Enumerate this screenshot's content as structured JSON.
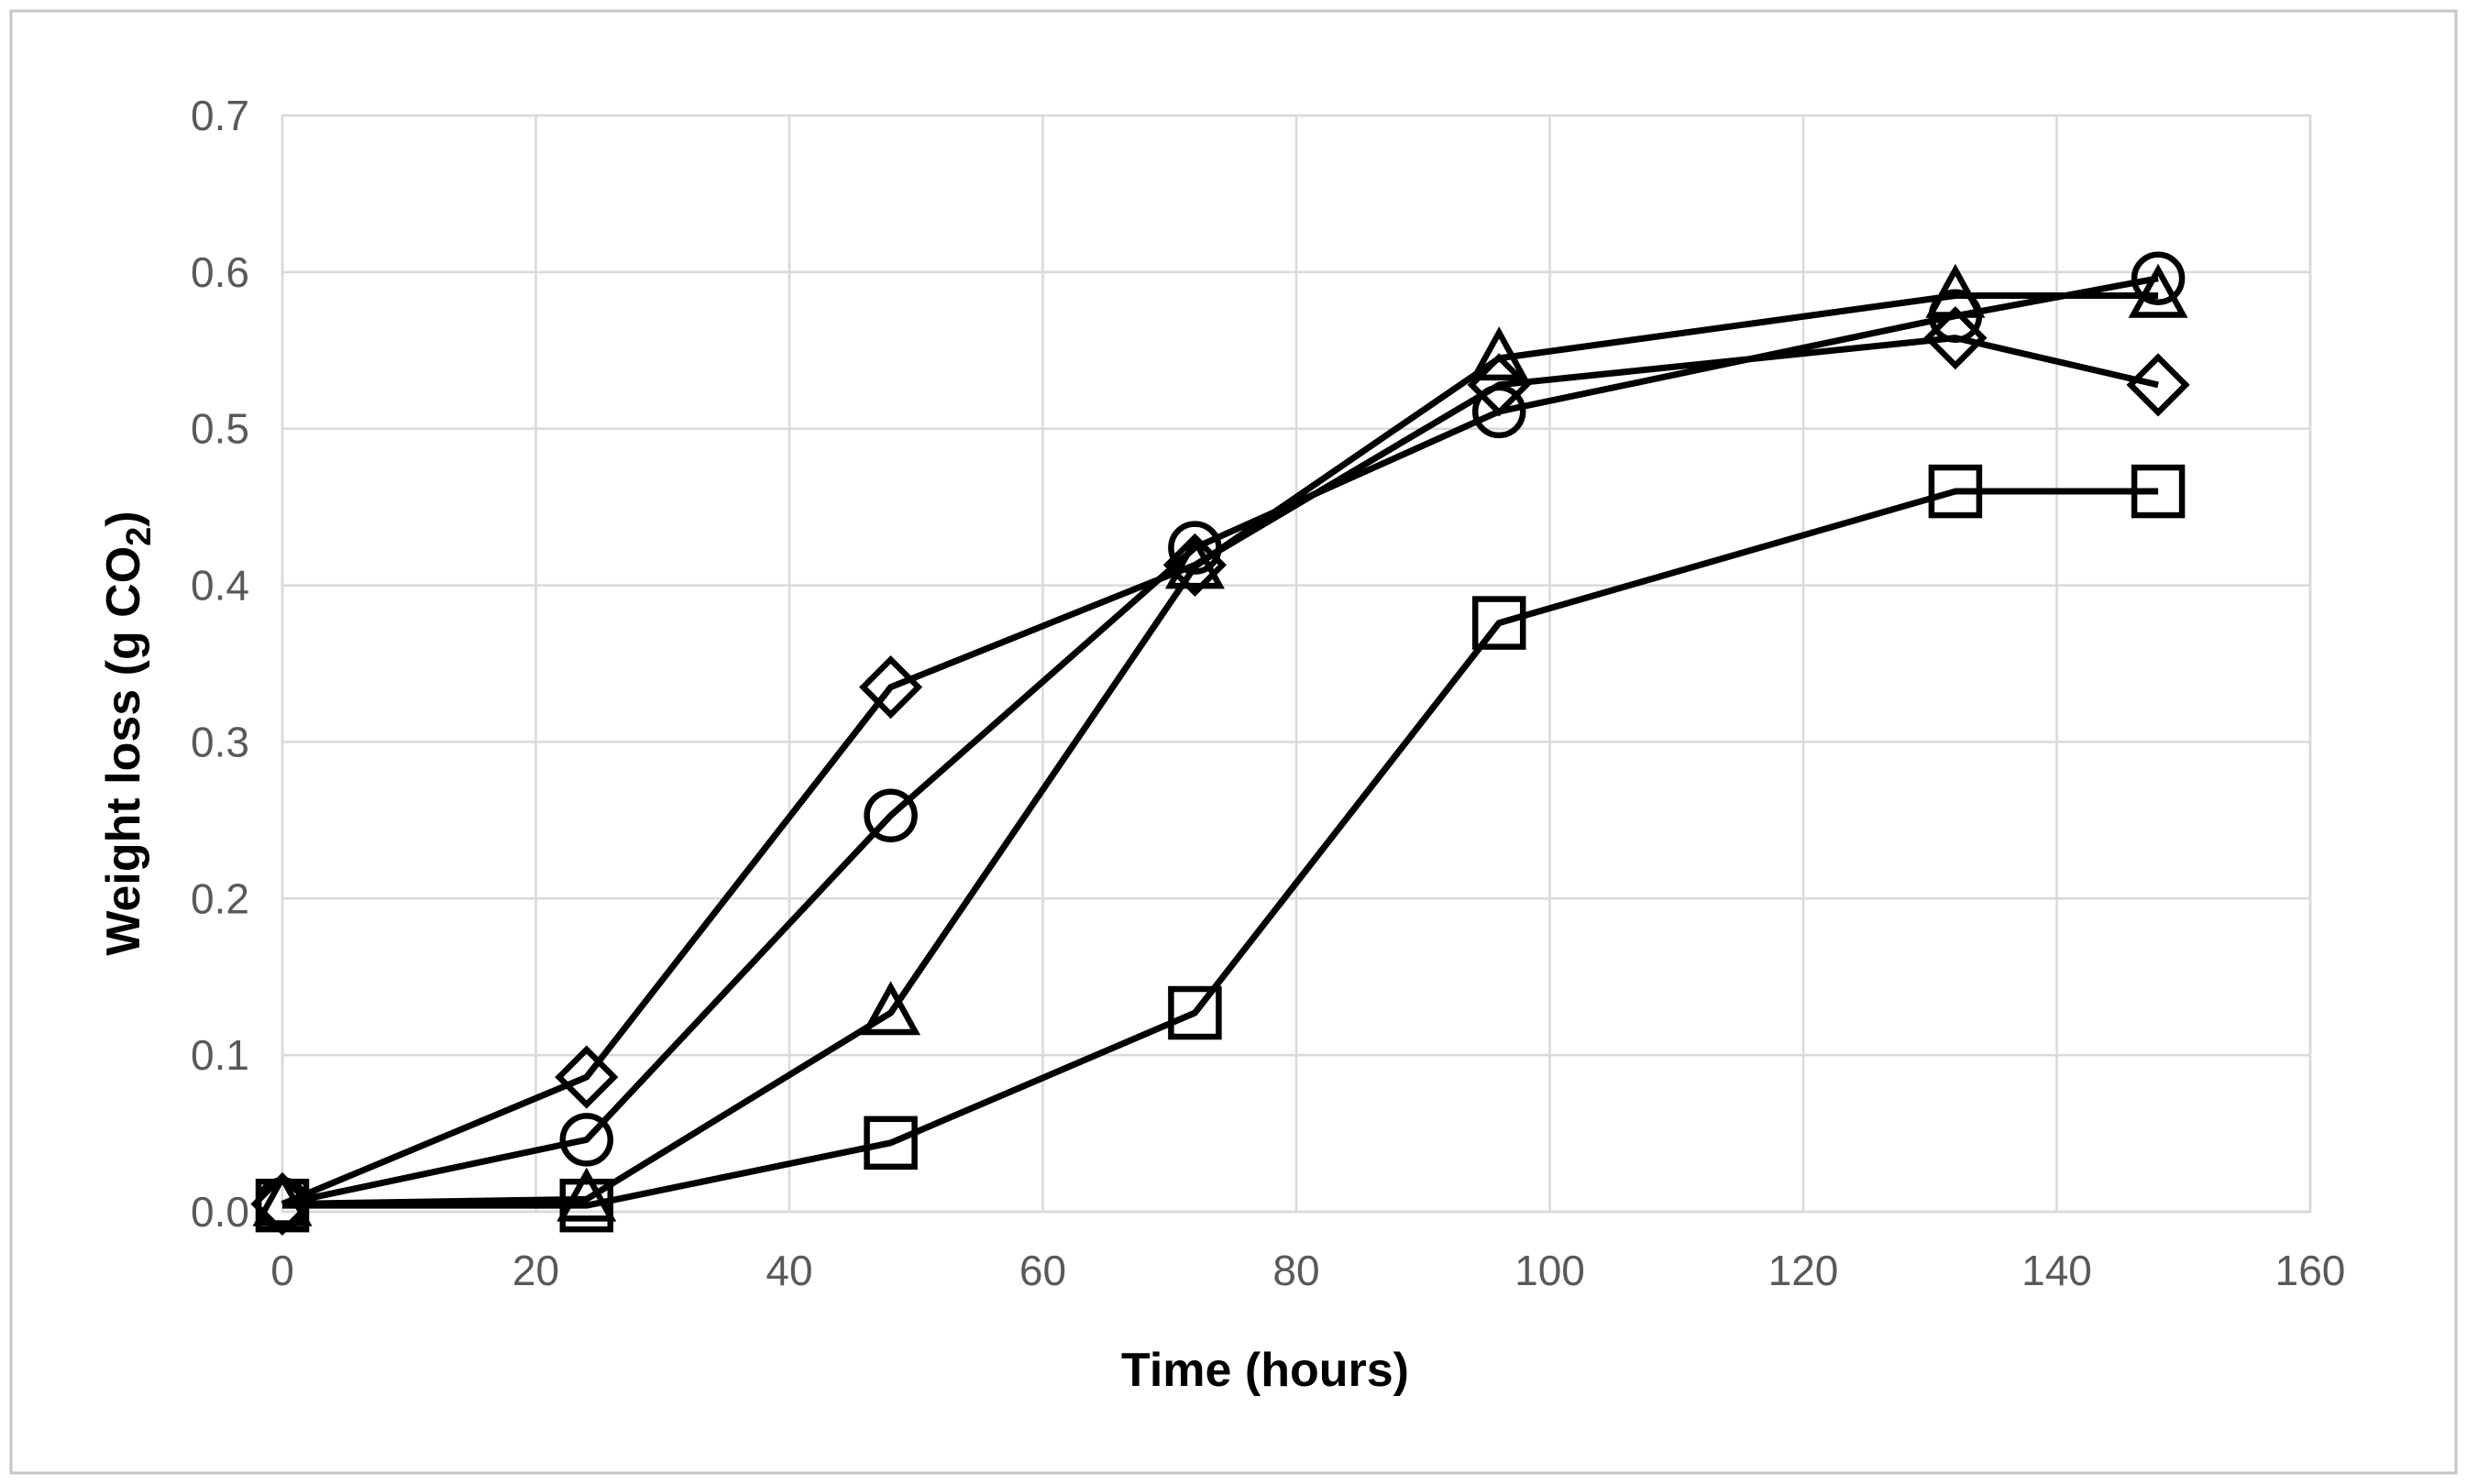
{
  "chart_data": {
    "type": "line",
    "title": "",
    "xlabel": "Time (hours)",
    "ylabel": {
      "pre": "Weight loss (g CO",
      "sub": "2",
      "post": ")"
    },
    "x": [
      0,
      24,
      48,
      72,
      96,
      132,
      148
    ],
    "series": [
      {
        "name": "diamond-series",
        "marker": "diamond",
        "values": [
          0.005,
          0.086,
          0.335,
          0.413,
          0.528,
          0.558,
          0.528
        ]
      },
      {
        "name": "circle-series",
        "marker": "circle",
        "values": [
          0.005,
          0.046,
          0.253,
          0.424,
          0.511,
          0.572,
          0.596
        ]
      },
      {
        "name": "triangle-series",
        "marker": "triangle",
        "values": [
          0.005,
          0.008,
          0.127,
          0.412,
          0.545,
          0.585,
          0.585
        ]
      },
      {
        "name": "square-series",
        "marker": "square",
        "values": [
          0.004,
          0.004,
          0.044,
          0.127,
          0.376,
          0.46,
          0.46
        ]
      }
    ],
    "xlim": [
      0,
      160
    ],
    "ylim": [
      0,
      0.7
    ],
    "x_tick_labels": [
      "0",
      "20",
      "40",
      "60",
      "80",
      "100",
      "120",
      "140",
      "160"
    ],
    "y_tick_labels": [
      "0.0",
      "0.1",
      "0.2",
      "0.3",
      "0.4",
      "0.5",
      "0.6",
      "0.7"
    ],
    "grid": true,
    "legend": "none",
    "line_color": "#000000",
    "grid_color": "#d9d9d9",
    "tick_label_color": "#595959",
    "axis_title_color": "#000000",
    "marker_fill": "none"
  }
}
